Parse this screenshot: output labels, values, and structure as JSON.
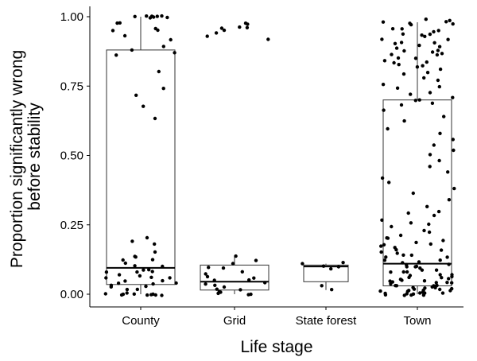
{
  "chart_data": {
    "type": "boxplot",
    "title": "",
    "xlabel": "Life stage",
    "ylabel_lines": [
      "Proportion significantly wrong",
      "before stability"
    ],
    "categories": [
      "County",
      "Grid",
      "State forest",
      "Town"
    ],
    "yticks": [
      "0.00",
      "0.25",
      "0.50",
      "0.75",
      "1.00"
    ],
    "ylim": [
      -0.04,
      1.04
    ],
    "grid": false,
    "legend": "none",
    "boxes": [
      {
        "category": "County",
        "whisker_low": 0.0,
        "q1": 0.035,
        "median": 0.095,
        "q3": 0.88,
        "whisker_high": 1.0
      },
      {
        "category": "Grid",
        "whisker_low": 0.0,
        "q1": 0.015,
        "median": 0.045,
        "q3": 0.105,
        "whisker_high": 0.14
      },
      {
        "category": "State forest",
        "whisker_low": 0.015,
        "q1": 0.045,
        "median": 0.1,
        "q3": 0.105,
        "whisker_high": 0.11
      },
      {
        "category": "Town",
        "whisker_low": 0.0,
        "q1": 0.03,
        "median": 0.11,
        "q3": 0.7,
        "whisker_high": 0.98
      }
    ],
    "points": [
      {
        "category": "County",
        "y": [
          1.0,
          1.0,
          1.0,
          0.98,
          0.96,
          0.95,
          1.0,
          1.0,
          0.98,
          1.0,
          0.95,
          1.0,
          0.93,
          0.92,
          1.0,
          0.89,
          0.86,
          0.88,
          0.87,
          0.8,
          0.72,
          0.74,
          0.68,
          0.63,
          0.2,
          0.18,
          0.15,
          0.19,
          0.14,
          0.13,
          0.12,
          0.12,
          0.11,
          0.1,
          0.1,
          0.09,
          0.09,
          0.08,
          0.08,
          0.08,
          0.07,
          0.07,
          0.06,
          0.06,
          0.06,
          0.05,
          0.05,
          0.04,
          0.04,
          0.04,
          0.03,
          0.03,
          0.03,
          0.02,
          0.02,
          0.0,
          0.0,
          0.0,
          0.0,
          0.0,
          0.0,
          0.0,
          0.0,
          0.0,
          0.0
        ]
      },
      {
        "category": "Grid",
        "y": [
          0.98,
          0.97,
          0.96,
          0.96,
          0.96,
          0.95,
          0.94,
          0.93,
          0.92,
          0.14,
          0.12,
          0.11,
          0.1,
          0.09,
          0.08,
          0.07,
          0.06,
          0.06,
          0.05,
          0.05,
          0.04,
          0.04,
          0.03,
          0.03,
          0.02,
          0.02,
          0.01,
          0.01,
          0.0,
          0.0,
          0.0
        ]
      },
      {
        "category": "State forest",
        "y": [
          0.11,
          0.11,
          0.1,
          0.1,
          0.09,
          0.03,
          0.015
        ]
      },
      {
        "category": "Town",
        "y": [
          0.99,
          0.99,
          0.98,
          0.98,
          0.98,
          0.97,
          0.97,
          0.96,
          0.96,
          0.95,
          0.95,
          0.94,
          0.94,
          0.93,
          0.93,
          0.92,
          0.92,
          0.91,
          0.91,
          0.9,
          0.9,
          0.89,
          0.89,
          0.88,
          0.88,
          0.87,
          0.87,
          0.86,
          0.86,
          0.85,
          0.85,
          0.84,
          0.84,
          0.83,
          0.83,
          0.82,
          0.82,
          0.81,
          0.8,
          0.79,
          0.78,
          0.77,
          0.76,
          0.75,
          0.74,
          0.73,
          0.72,
          0.71,
          0.7,
          0.7,
          0.69,
          0.68,
          0.66,
          0.64,
          0.62,
          0.6,
          0.58,
          0.56,
          0.54,
          0.52,
          0.5,
          0.48,
          0.46,
          0.44,
          0.42,
          0.4,
          0.38,
          0.36,
          0.34,
          0.32,
          0.3,
          0.29,
          0.28,
          0.27,
          0.26,
          0.25,
          0.24,
          0.23,
          0.22,
          0.21,
          0.2,
          0.2,
          0.19,
          0.19,
          0.18,
          0.18,
          0.17,
          0.17,
          0.16,
          0.16,
          0.15,
          0.15,
          0.14,
          0.14,
          0.13,
          0.13,
          0.12,
          0.12,
          0.12,
          0.11,
          0.11,
          0.11,
          0.1,
          0.1,
          0.1,
          0.09,
          0.09,
          0.09,
          0.08,
          0.08,
          0.08,
          0.07,
          0.07,
          0.07,
          0.06,
          0.06,
          0.06,
          0.06,
          0.05,
          0.05,
          0.05,
          0.05,
          0.04,
          0.04,
          0.04,
          0.04,
          0.04,
          0.03,
          0.03,
          0.03,
          0.03,
          0.03,
          0.03,
          0.02,
          0.02,
          0.02,
          0.02,
          0.02,
          0.02,
          0.01,
          0.01,
          0.01,
          0.01,
          0.01,
          0.01,
          0.0,
          0.0,
          0.0,
          0.0,
          0.0,
          0.0,
          0.0,
          0.0,
          0.0,
          0.0
        ]
      }
    ]
  }
}
